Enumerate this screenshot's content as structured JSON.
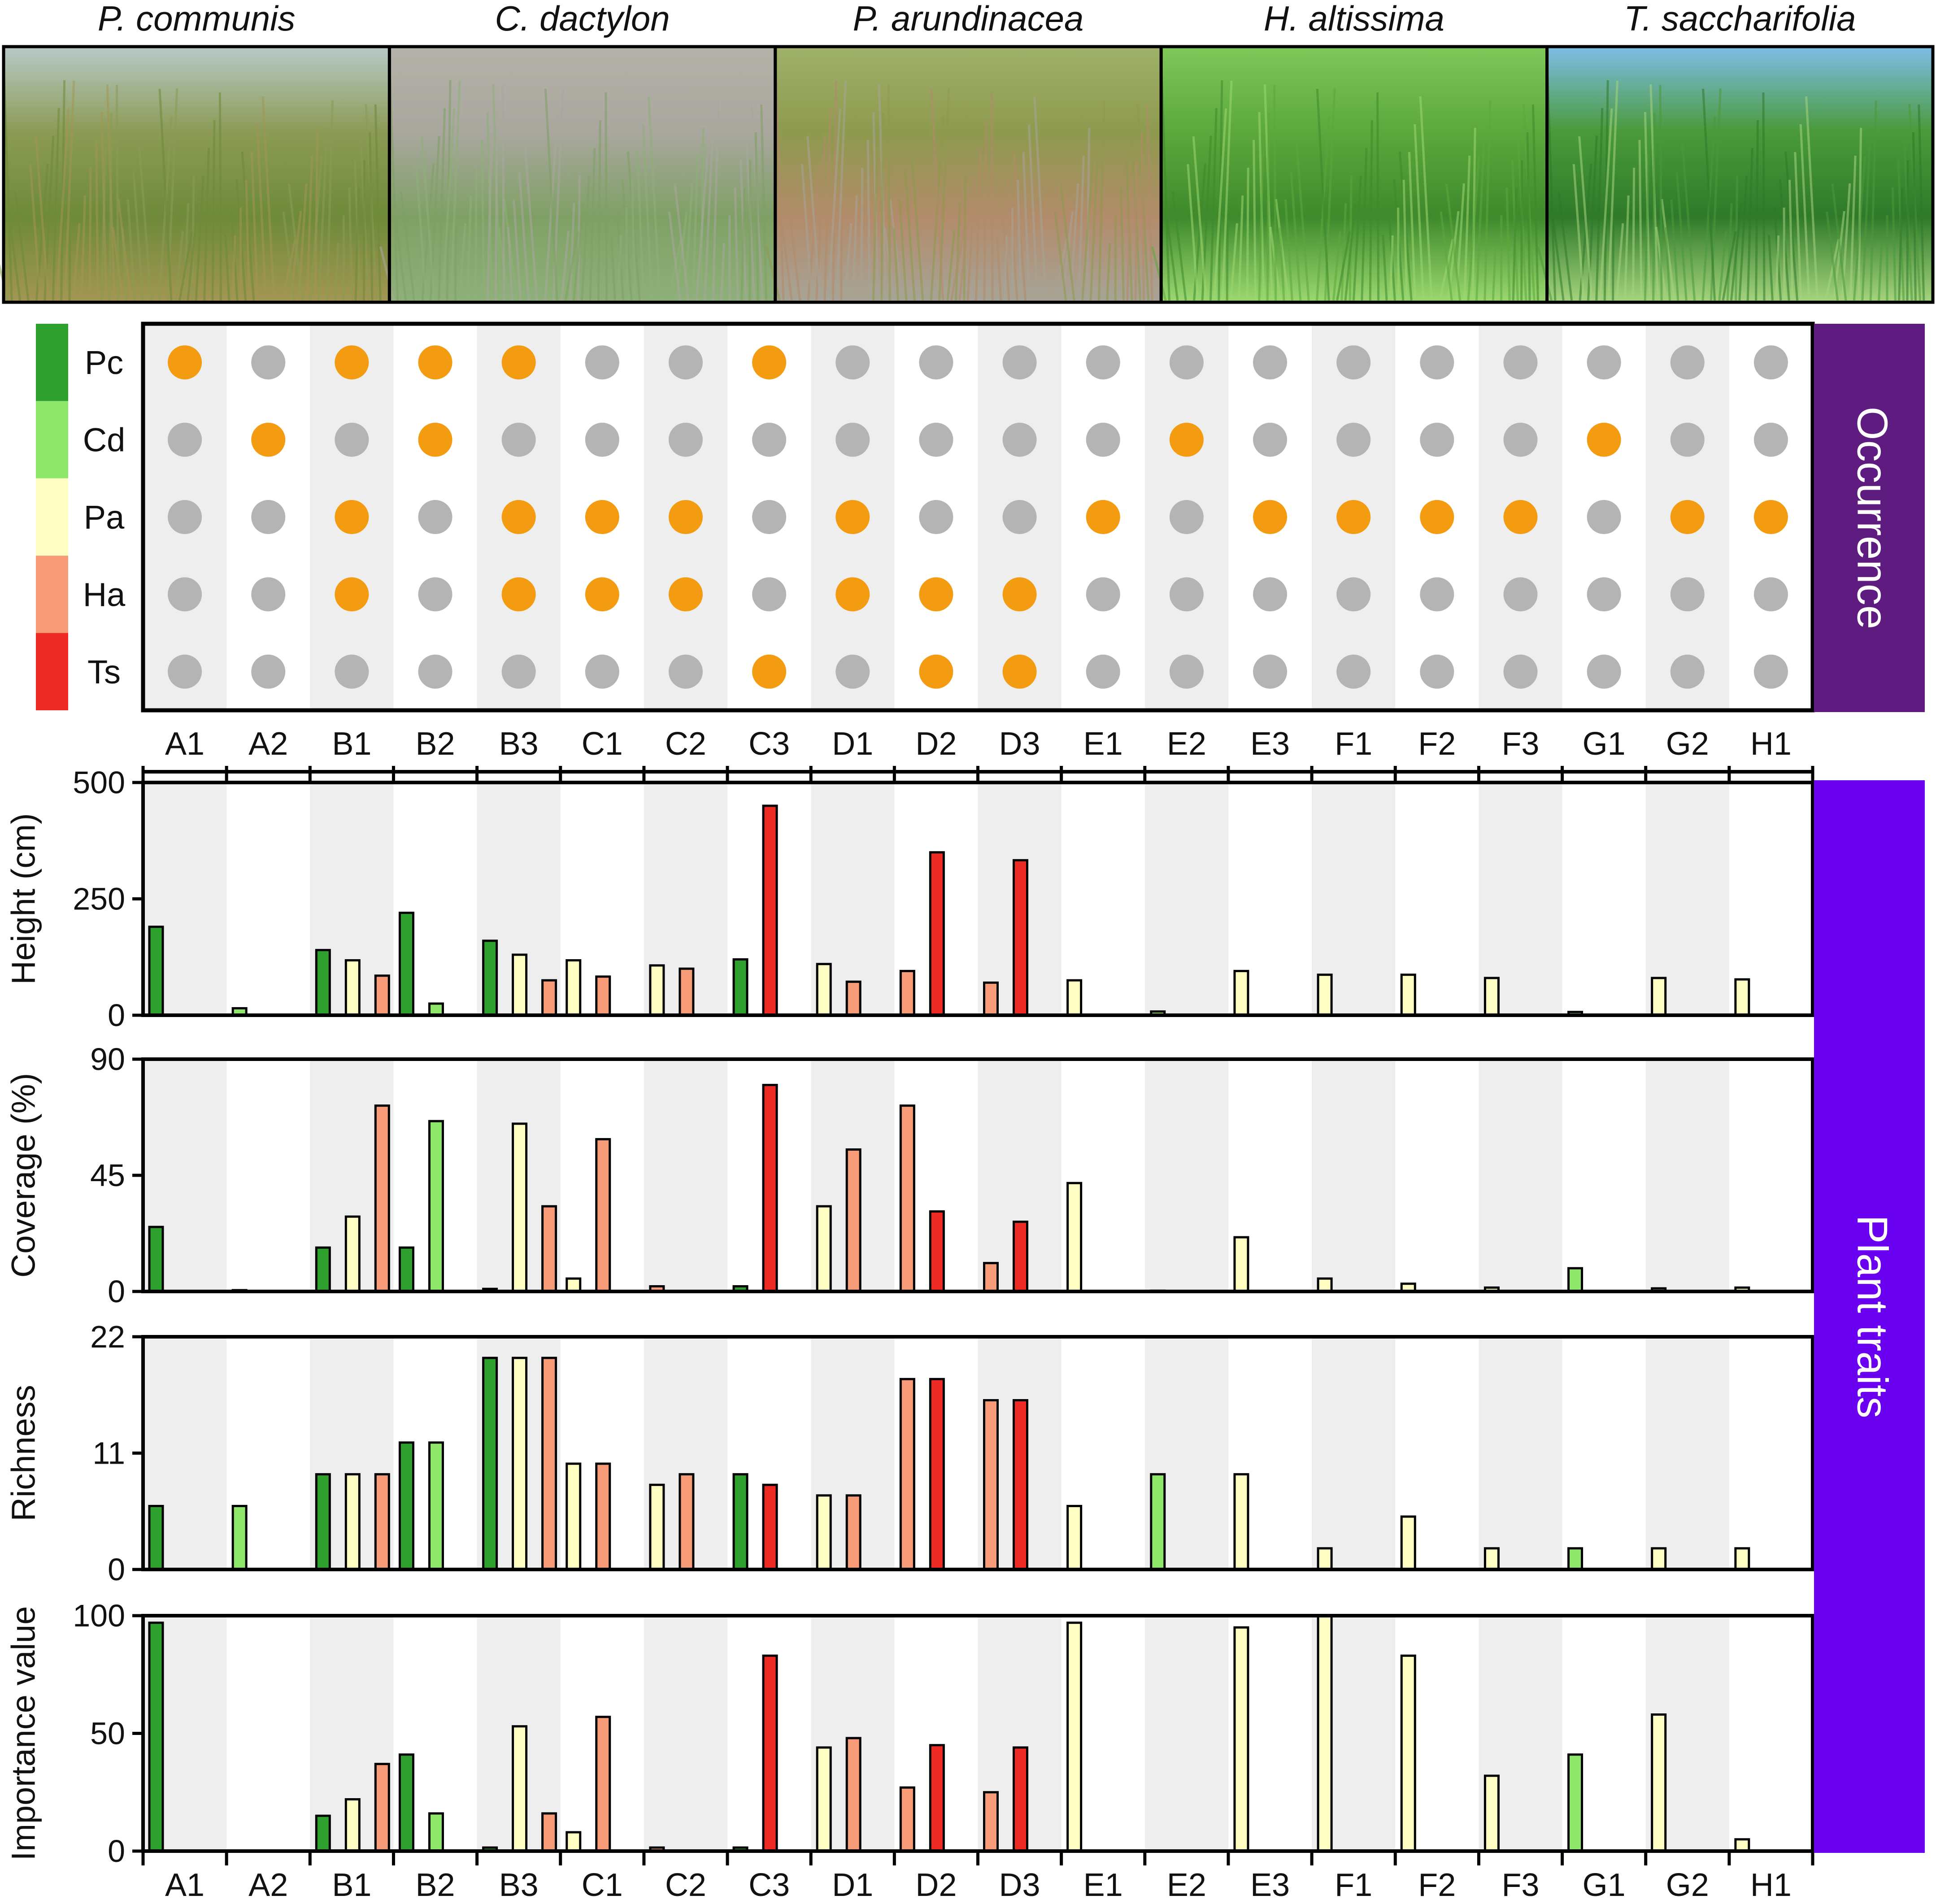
{
  "photos": [
    {
      "caption": "P. communis",
      "palette": [
        "#b7c9c8",
        "#8c9b55",
        "#6e8a3a",
        "#a39653"
      ]
    },
    {
      "caption": "C. dactylon",
      "palette": [
        "#b3b1a8",
        "#a9a79e",
        "#7fa065",
        "#8fb07a"
      ]
    },
    {
      "caption": "P. arundinacea",
      "palette": [
        "#9fb16a",
        "#8e9a4e",
        "#b28b6a",
        "#a7a497"
      ]
    },
    {
      "caption": "H. altissima",
      "palette": [
        "#7fc85a",
        "#5ca83c",
        "#3e8a2c",
        "#9cd870"
      ]
    },
    {
      "caption": "T. saccharifolia",
      "palette": [
        "#7fbde8",
        "#4a9a3a",
        "#2f7a2a",
        "#a6d47e"
      ]
    }
  ],
  "species": [
    {
      "code": "Pc",
      "color": "#2ea02e"
    },
    {
      "code": "Cd",
      "color": "#8ee66a"
    },
    {
      "code": "Pa",
      "color": "#ffffc4"
    },
    {
      "code": "Ha",
      "color": "#f79a78"
    },
    {
      "code": "Ts",
      "color": "#ee2a24"
    }
  ],
  "sites": [
    "A1",
    "A2",
    "B1",
    "B2",
    "B3",
    "C1",
    "C2",
    "C3",
    "D1",
    "D2",
    "D3",
    "E1",
    "E2",
    "E3",
    "F1",
    "F2",
    "F3",
    "G1",
    "G2",
    "H1"
  ],
  "occurrence": {
    "label": "Occurrence",
    "band_color": "#5e1c80",
    "present_color": "#f39c12",
    "absent_color": "#b4b4b4",
    "matrix": [
      [
        1,
        0,
        1,
        1,
        1,
        0,
        0,
        1,
        0,
        0,
        0,
        0,
        0,
        0,
        0,
        0,
        0,
        0,
        0,
        0
      ],
      [
        0,
        1,
        0,
        1,
        0,
        0,
        0,
        0,
        0,
        0,
        0,
        0,
        1,
        0,
        0,
        0,
        0,
        1,
        0,
        0
      ],
      [
        0,
        0,
        1,
        0,
        1,
        1,
        1,
        0,
        1,
        0,
        0,
        1,
        0,
        1,
        1,
        1,
        1,
        0,
        1,
        1
      ],
      [
        0,
        0,
        1,
        0,
        1,
        1,
        1,
        0,
        1,
        1,
        1,
        0,
        0,
        0,
        0,
        0,
        0,
        0,
        0,
        0
      ],
      [
        0,
        0,
        0,
        0,
        0,
        0,
        0,
        1,
        0,
        1,
        1,
        0,
        0,
        0,
        0,
        0,
        0,
        0,
        0,
        0
      ]
    ]
  },
  "traits_label": "Plant traits",
  "traits_band_color": "#6a00f0",
  "chart_data": [
    {
      "type": "bar",
      "ylabel": "Height (cm)",
      "ylim": [
        0,
        500
      ],
      "yticks": [
        "0",
        "250",
        "500"
      ],
      "categories": [
        "A1",
        "A2",
        "B1",
        "B2",
        "B3",
        "C1",
        "C2",
        "C3",
        "D1",
        "D2",
        "D3",
        "E1",
        "E2",
        "E3",
        "F1",
        "F2",
        "F3",
        "G1",
        "G2",
        "H1"
      ],
      "bars_by_site": [
        [
          [
            "Pc",
            190
          ]
        ],
        [
          [
            "Cd",
            15
          ]
        ],
        [
          [
            "Pc",
            140
          ],
          [
            "Pa",
            118
          ],
          [
            "Ha",
            85
          ]
        ],
        [
          [
            "Pc",
            220
          ],
          [
            "Cd",
            25
          ]
        ],
        [
          [
            "Pc",
            160
          ],
          [
            "Pa",
            130
          ],
          [
            "Ha",
            75
          ]
        ],
        [
          [
            "Pa",
            118
          ],
          [
            "Ha",
            83
          ]
        ],
        [
          [
            "Pa",
            107
          ],
          [
            "Ha",
            100
          ]
        ],
        [
          [
            "Pc",
            120
          ],
          [
            "Ts",
            450
          ]
        ],
        [
          [
            "Pa",
            110
          ],
          [
            "Ha",
            72
          ]
        ],
        [
          [
            "Ha",
            95
          ],
          [
            "Ts",
            350
          ]
        ],
        [
          [
            "Ha",
            70
          ],
          [
            "Ts",
            333
          ]
        ],
        [
          [
            "Pa",
            75
          ]
        ],
        [
          [
            "Cd",
            8
          ]
        ],
        [
          [
            "Pa",
            95
          ]
        ],
        [
          [
            "Pa",
            87
          ]
        ],
        [
          [
            "Pa",
            87
          ]
        ],
        [
          [
            "Pa",
            80
          ]
        ],
        [
          [
            "Cd",
            7
          ]
        ],
        [
          [
            "Pa",
            80
          ]
        ],
        [
          [
            "Pa",
            77
          ]
        ]
      ]
    },
    {
      "type": "bar",
      "ylabel": "Coverage (%)",
      "ylim": [
        0,
        90
      ],
      "yticks": [
        "0",
        "45",
        "90"
      ],
      "categories": [
        "A1",
        "A2",
        "B1",
        "B2",
        "B3",
        "C1",
        "C2",
        "C3",
        "D1",
        "D2",
        "D3",
        "E1",
        "E2",
        "E3",
        "F1",
        "F2",
        "F3",
        "G1",
        "G2",
        "H1"
      ],
      "bars_by_site": [
        [
          [
            "Pc",
            25
          ]
        ],
        [
          [
            "Cd",
            0.5
          ]
        ],
        [
          [
            "Pc",
            17
          ],
          [
            "Pa",
            29
          ],
          [
            "Ha",
            72
          ]
        ],
        [
          [
            "Pc",
            17
          ],
          [
            "Cd",
            66
          ]
        ],
        [
          [
            "Pc",
            1
          ],
          [
            "Pa",
            65
          ],
          [
            "Ha",
            33
          ]
        ],
        [
          [
            "Pa",
            5
          ],
          [
            "Ha",
            59
          ]
        ],
        [
          [
            "Ha",
            2
          ]
        ],
        [
          [
            "Pc",
            2
          ],
          [
            "Ts",
            80
          ]
        ],
        [
          [
            "Pa",
            33
          ],
          [
            "Ha",
            55
          ]
        ],
        [
          [
            "Ha",
            72
          ],
          [
            "Ts",
            31
          ]
        ],
        [
          [
            "Ha",
            11
          ],
          [
            "Ts",
            27
          ]
        ],
        [
          [
            "Pa",
            42
          ]
        ],
        [
          [
            "Cd",
            0.3
          ]
        ],
        [
          [
            "Pa",
            21
          ]
        ],
        [
          [
            "Pa",
            5
          ]
        ],
        [
          [
            "Pa",
            3
          ]
        ],
        [
          [
            "Pa",
            1.5
          ]
        ],
        [
          [
            "Cd",
            9
          ]
        ],
        [
          [
            "Pa",
            1.2
          ]
        ],
        [
          [
            "Pa",
            1.5
          ]
        ]
      ]
    },
    {
      "type": "bar",
      "ylabel": "Richness",
      "ylim": [
        0,
        22
      ],
      "yticks": [
        "0",
        "11",
        "22"
      ],
      "categories": [
        "A1",
        "A2",
        "B1",
        "B2",
        "B3",
        "C1",
        "C2",
        "C3",
        "D1",
        "D2",
        "D3",
        "E1",
        "E2",
        "E3",
        "F1",
        "F2",
        "F3",
        "G1",
        "G2",
        "H1"
      ],
      "bars_by_site": [
        [
          [
            "Pc",
            6
          ]
        ],
        [
          [
            "Cd",
            6
          ]
        ],
        [
          [
            "Pc",
            9
          ],
          [
            "Pa",
            9
          ],
          [
            "Ha",
            9
          ]
        ],
        [
          [
            "Pc",
            12
          ],
          [
            "Cd",
            12
          ]
        ],
        [
          [
            "Pc",
            20
          ],
          [
            "Pa",
            20
          ],
          [
            "Ha",
            20
          ]
        ],
        [
          [
            "Pa",
            10
          ],
          [
            "Ha",
            10
          ]
        ],
        [
          [
            "Pa",
            8
          ],
          [
            "Ha",
            9
          ]
        ],
        [
          [
            "Pc",
            9
          ],
          [
            "Ts",
            8
          ]
        ],
        [
          [
            "Pa",
            7
          ],
          [
            "Ha",
            7
          ]
        ],
        [
          [
            "Ha",
            18
          ],
          [
            "Ts",
            18
          ]
        ],
        [
          [
            "Ha",
            16
          ],
          [
            "Ts",
            16
          ]
        ],
        [
          [
            "Pa",
            6
          ]
        ],
        [
          [
            "Cd",
            9
          ]
        ],
        [
          [
            "Pa",
            9
          ]
        ],
        [
          [
            "Pa",
            2
          ]
        ],
        [
          [
            "Pa",
            5
          ]
        ],
        [
          [
            "Pa",
            2
          ]
        ],
        [
          [
            "Cd",
            2
          ]
        ],
        [
          [
            "Pa",
            2
          ]
        ],
        [
          [
            "Pa",
            2
          ]
        ]
      ]
    },
    {
      "type": "bar",
      "ylabel": "Importance value",
      "ylim": [
        0,
        100
      ],
      "yticks": [
        "0",
        "50",
        "100"
      ],
      "categories": [
        "A1",
        "A2",
        "B1",
        "B2",
        "B3",
        "C1",
        "C2",
        "C3",
        "D1",
        "D2",
        "D3",
        "E1",
        "E2",
        "E3",
        "F1",
        "F2",
        "F3",
        "G1",
        "G2",
        "H1"
      ],
      "bars_by_site": [
        [
          [
            "Pc",
            97
          ]
        ],
        [],
        [
          [
            "Pc",
            15
          ],
          [
            "Pa",
            22
          ],
          [
            "Ha",
            37
          ]
        ],
        [
          [
            "Pc",
            41
          ],
          [
            "Cd",
            16
          ]
        ],
        [
          [
            "Pc",
            1.5
          ],
          [
            "Pa",
            53
          ],
          [
            "Ha",
            16
          ]
        ],
        [
          [
            "Pa",
            8
          ],
          [
            "Ha",
            57
          ]
        ],
        [
          [
            "Ha",
            1.5
          ]
        ],
        [
          [
            "Pc",
            1.5
          ],
          [
            "Ts",
            83
          ]
        ],
        [
          [
            "Pa",
            44
          ],
          [
            "Ha",
            48
          ]
        ],
        [
          [
            "Ha",
            27
          ],
          [
            "Ts",
            45
          ]
        ],
        [
          [
            "Ha",
            25
          ],
          [
            "Ts",
            44
          ]
        ],
        [
          [
            "Pa",
            97
          ]
        ],
        [],
        [
          [
            "Pa",
            95
          ]
        ],
        [
          [
            "Pa",
            100
          ]
        ],
        [
          [
            "Pa",
            83
          ]
        ],
        [
          [
            "Pa",
            32
          ]
        ],
        [
          [
            "Cd",
            41
          ]
        ],
        [
          [
            "Pa",
            58
          ]
        ],
        [
          [
            "Pa",
            5
          ]
        ]
      ]
    }
  ]
}
